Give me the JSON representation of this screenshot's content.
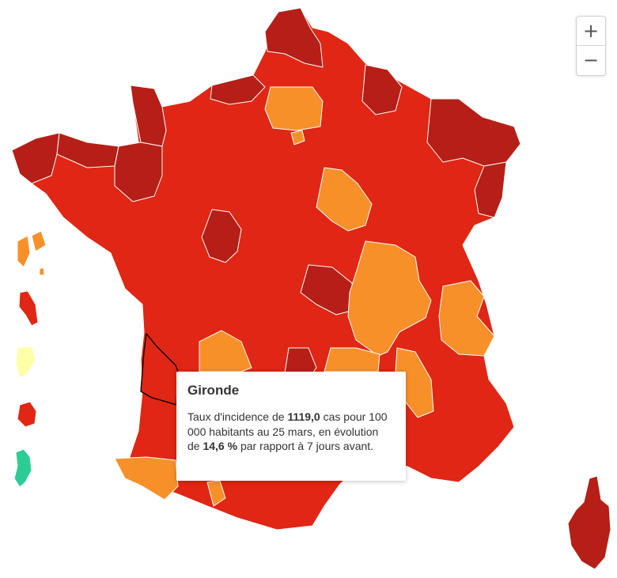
{
  "zoom": {
    "in_label": "+",
    "out_label": "−"
  },
  "tooltip": {
    "title": "Gironde",
    "text_1": "Taux d'incidence de ",
    "rate": "1119,0",
    "text_2": " cas pour 100 000 habitants au 25 mars, en évolution de ",
    "change": "14,6 %",
    "text_3": " par rapport à 7 jours avant."
  },
  "colors": {
    "very_high": "#b51f17",
    "high": "#e02614",
    "medium": "#f8902a",
    "low": "#ffffa8",
    "very_low": "#2ccc94",
    "selected_outline": "#000000"
  }
}
